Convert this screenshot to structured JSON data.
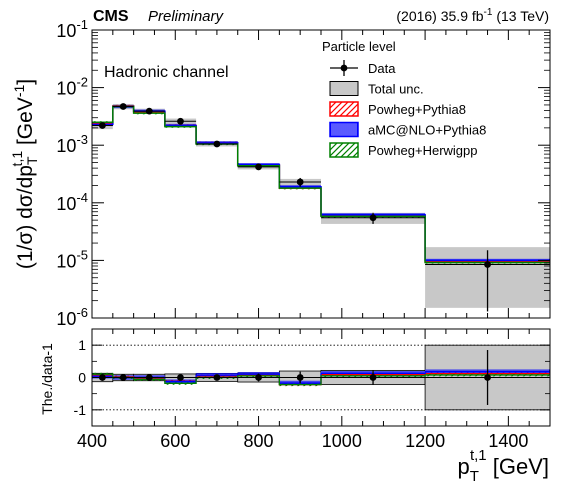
{
  "header": {
    "experiment": "CMS",
    "status": "Preliminary",
    "lumi": {
      "year": "(2016) 35.9 fb",
      "exp": "-1",
      "energy": " (13 TeV)"
    }
  },
  "chart_data": [
    {
      "type": "step-histogram",
      "panel": "upper",
      "annotation": "Hadronic channel",
      "ylabel": {
        "main": "(1/σ) dσ/dp",
        "sub": "T",
        "sup": "t,1",
        "unit": " [GeV",
        "unit_sup": "-1",
        "close": "]"
      },
      "yscale": "log",
      "ylim": [
        1e-06,
        0.1
      ],
      "yticks": [
        {
          "value": 1e-06,
          "base": "10",
          "exp": "-6"
        },
        {
          "value": 1e-05,
          "base": "10",
          "exp": "-5"
        },
        {
          "value": 0.0001,
          "base": "10",
          "exp": "-4"
        },
        {
          "value": 0.001,
          "base": "10",
          "exp": "-3"
        },
        {
          "value": 0.01,
          "base": "10",
          "exp": "-2"
        },
        {
          "value": 0.1,
          "base": "10",
          "exp": "-1"
        }
      ],
      "xlim": [
        400,
        1500
      ],
      "bins": [
        {
          "lo": 400,
          "hi": 450,
          "data": 0.0022,
          "data_err": 0.0002,
          "total_lo": 0.0019,
          "total_hi": 0.0025,
          "powheg_pythia8": 0.0024,
          "amcnlo_pythia8": 0.0023,
          "powheg_herwigpp": 0.0025
        },
        {
          "lo": 450,
          "hi": 500,
          "data": 0.0047,
          "data_err": 0.0003,
          "total_lo": 0.0042,
          "total_hi": 0.0052,
          "powheg_pythia8": 0.0048,
          "amcnlo_pythia8": 0.0047,
          "powheg_herwigpp": 0.0047
        },
        {
          "lo": 500,
          "hi": 575,
          "data": 0.0039,
          "data_err": 0.0003,
          "total_lo": 0.0035,
          "total_hi": 0.0043,
          "powheg_pythia8": 0.0038,
          "amcnlo_pythia8": 0.0039,
          "powheg_herwigpp": 0.0036
        },
        {
          "lo": 575,
          "hi": 650,
          "data": 0.0026,
          "data_err": 0.0002,
          "total_lo": 0.0023,
          "total_hi": 0.0029,
          "powheg_pythia8": 0.0022,
          "amcnlo_pythia8": 0.0022,
          "powheg_herwigpp": 0.0021
        },
        {
          "lo": 650,
          "hi": 750,
          "data": 0.00105,
          "data_err": 0.0001,
          "total_lo": 0.00095,
          "total_hi": 0.00118,
          "powheg_pythia8": 0.0011,
          "amcnlo_pythia8": 0.0011,
          "powheg_herwigpp": 0.00105
        },
        {
          "lo": 750,
          "hi": 850,
          "data": 0.00042,
          "data_err": 5e-05,
          "total_lo": 0.00038,
          "total_hi": 0.00048,
          "powheg_pythia8": 0.00045,
          "amcnlo_pythia8": 0.00046,
          "powheg_herwigpp": 0.00044
        },
        {
          "lo": 850,
          "hi": 950,
          "data": 0.00023,
          "data_err": 4e-05,
          "total_lo": 0.00019,
          "total_hi": 0.00026,
          "powheg_pythia8": 0.00018,
          "amcnlo_pythia8": 0.00019,
          "powheg_herwigpp": 0.00018
        },
        {
          "lo": 950,
          "hi": 1200,
          "data": 5.5e-05,
          "data_err": 1.2e-05,
          "total_lo": 4.3e-05,
          "total_hi": 6.7e-05,
          "powheg_pythia8": 6e-05,
          "amcnlo_pythia8": 6.2e-05,
          "powheg_herwigpp": 5.8e-05
        },
        {
          "lo": 1200,
          "hi": 1500,
          "data": 8.5e-06,
          "data_err_lo": 7.2e-06,
          "data_err_hi": 6.5e-06,
          "total_lo": 1.5e-06,
          "total_hi": 1.7e-05,
          "powheg_pythia8": 9.5e-06,
          "amcnlo_pythia8": 1e-05,
          "powheg_herwigpp": 9.2e-06
        }
      ],
      "series": [
        {
          "key": "powheg_pythia8",
          "color": "#ff0000",
          "style": "hatch-diagonal"
        },
        {
          "key": "amcnlo_pythia8",
          "color": "#0000ff",
          "style": "hatch-vertical"
        },
        {
          "key": "powheg_herwigpp",
          "color": "#008000",
          "style": "hatch-diagonal"
        }
      ],
      "legend": {
        "title": "Particle level",
        "placement": "top-right",
        "entries": [
          {
            "label": "Data",
            "kind": "marker"
          },
          {
            "label": "Total unc.",
            "kind": "box-gray"
          },
          {
            "label": "Powheg+Pythia8",
            "kind": "hatch",
            "color": "#ff0000",
            "style": "hatch-diagonal"
          },
          {
            "label": "aMC@NLO+Pythia8",
            "kind": "hatch",
            "color": "#0000ff",
            "style": "hatch-vertical"
          },
          {
            "label": "Powheg+Herwigpp",
            "kind": "hatch",
            "color": "#008000",
            "style": "hatch-diagonal"
          }
        ]
      }
    },
    {
      "type": "ratio",
      "panel": "lower",
      "ylabel": "The./data-1",
      "ylim": [
        -1.5,
        1.5
      ],
      "yticks": [
        -1,
        0,
        1
      ],
      "reference_lines": [
        -1,
        1
      ],
      "xlabel": {
        "main": "p",
        "sub": "T",
        "sup": "t,1",
        "unit": " [GeV]"
      },
      "xlim": [
        400,
        1500
      ],
      "xticks": [
        400,
        600,
        800,
        1000,
        1200,
        1400
      ],
      "bins": [
        {
          "lo": 400,
          "hi": 450,
          "data_err": 0.1,
          "total": 0.13,
          "powheg_pythia8": 0.08,
          "amcnlo_pythia8": 0.04,
          "powheg_herwigpp": 0.1
        },
        {
          "lo": 450,
          "hi": 500,
          "data_err": 0.07,
          "total": 0.1,
          "powheg_pythia8": 0.02,
          "amcnlo_pythia8": 0.0,
          "powheg_herwigpp": 0.0
        },
        {
          "lo": 500,
          "hi": 575,
          "data_err": 0.07,
          "total": 0.1,
          "powheg_pythia8": -0.02,
          "amcnlo_pythia8": 0.0,
          "powheg_herwigpp": -0.06
        },
        {
          "lo": 575,
          "hi": 650,
          "data_err": 0.08,
          "total": 0.11,
          "powheg_pythia8": -0.12,
          "amcnlo_pythia8": -0.13,
          "powheg_herwigpp": -0.18
        },
        {
          "lo": 650,
          "hi": 750,
          "data_err": 0.09,
          "total": 0.12,
          "powheg_pythia8": 0.05,
          "amcnlo_pythia8": 0.07,
          "powheg_herwigpp": 0.0
        },
        {
          "lo": 750,
          "hi": 850,
          "data_err": 0.12,
          "total": 0.14,
          "powheg_pythia8": 0.07,
          "amcnlo_pythia8": 0.1,
          "powheg_herwigpp": 0.05
        },
        {
          "lo": 850,
          "hi": 950,
          "data_err": 0.18,
          "total": 0.2,
          "powheg_pythia8": -0.22,
          "amcnlo_pythia8": -0.17,
          "powheg_herwigpp": -0.22
        },
        {
          "lo": 950,
          "hi": 1200,
          "data_err": 0.22,
          "total": 0.22,
          "powheg_pythia8": 0.09,
          "amcnlo_pythia8": 0.13,
          "powheg_herwigpp": 0.05
        },
        {
          "lo": 1200,
          "hi": 1500,
          "data_err": 0.85,
          "total": 1.0,
          "powheg_pythia8": 0.12,
          "amcnlo_pythia8": 0.18,
          "powheg_herwigpp": 0.08
        }
      ]
    }
  ]
}
